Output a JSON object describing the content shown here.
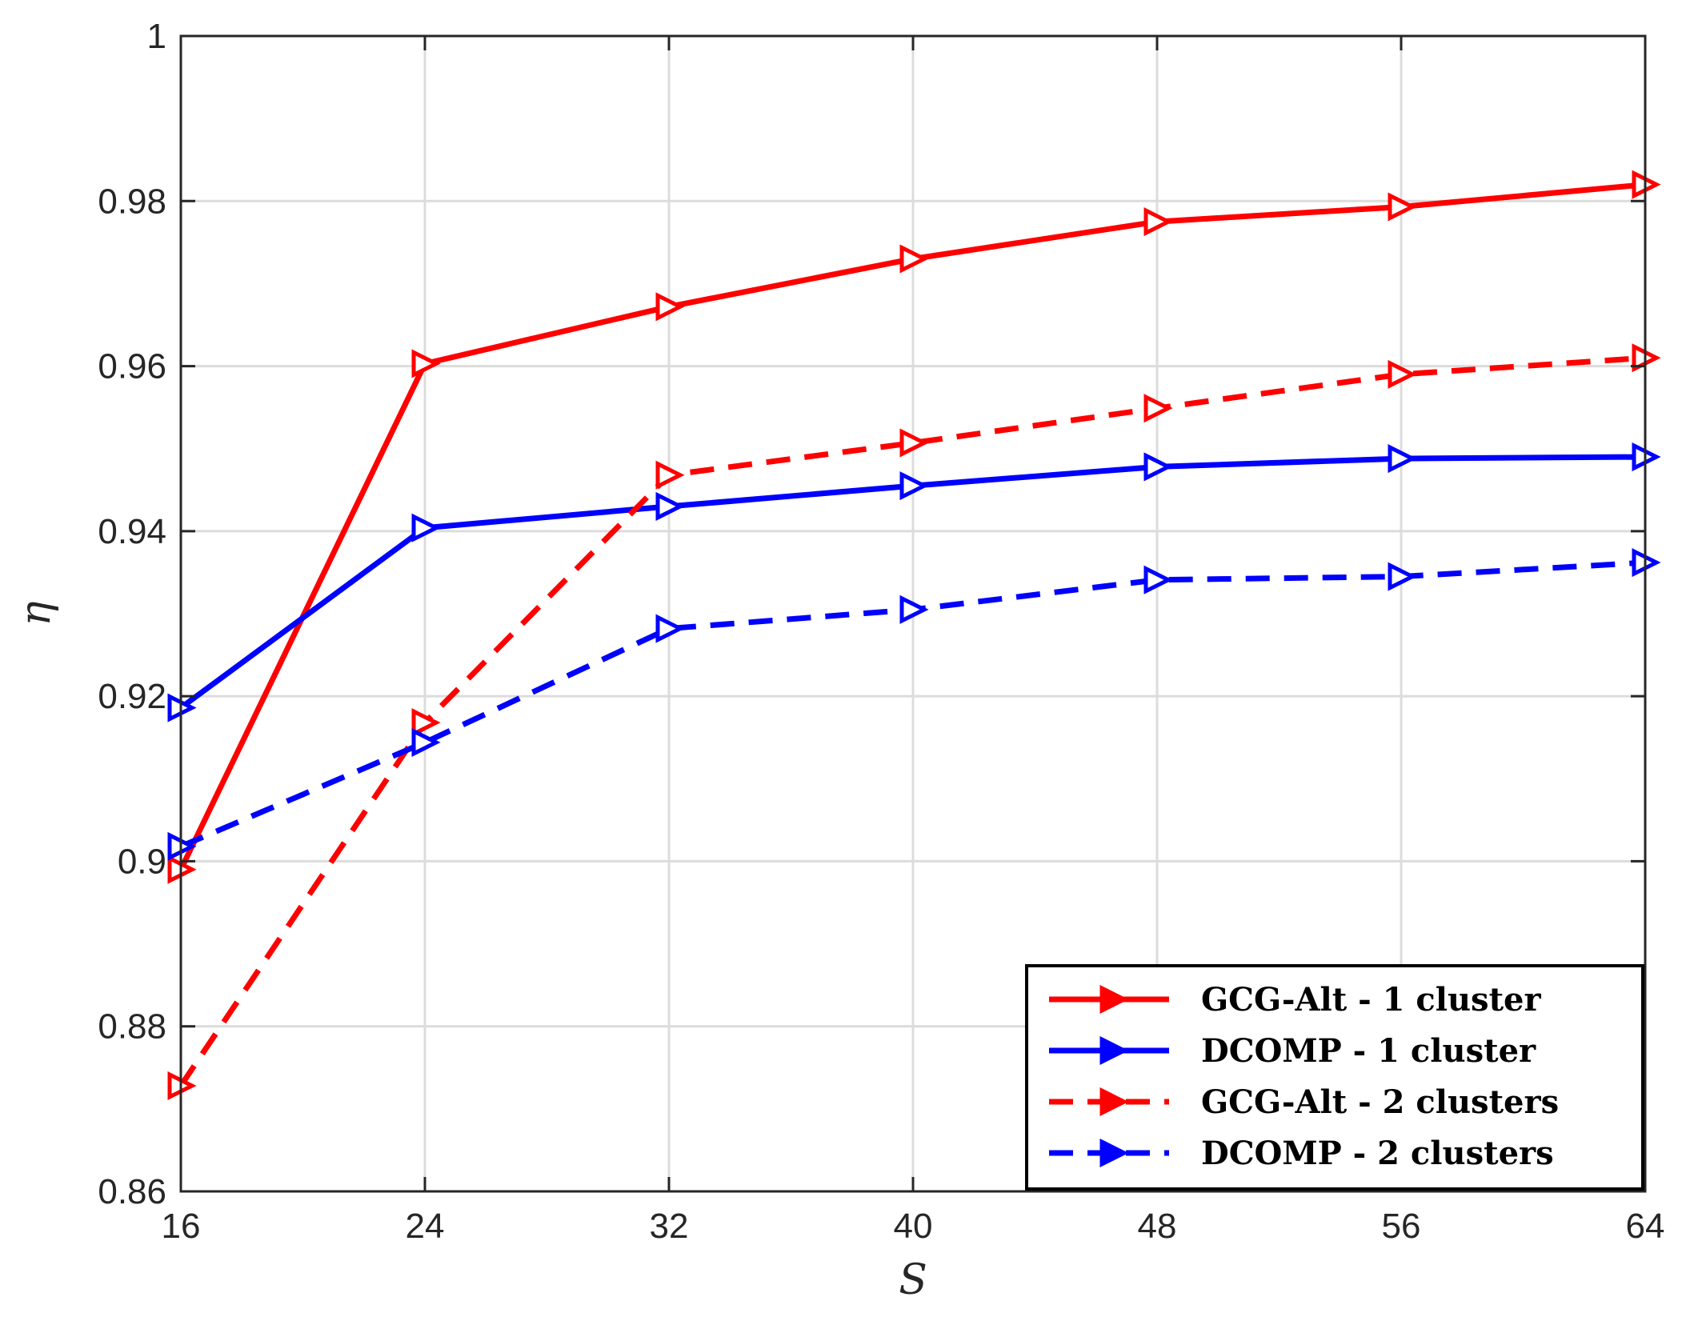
{
  "chart_data": {
    "type": "line",
    "xlabel": "S",
    "ylabel": "η",
    "xlim": [
      16,
      64
    ],
    "ylim": [
      0.86,
      1.0
    ],
    "x_ticks": [
      16,
      24,
      32,
      40,
      48,
      56,
      64
    ],
    "y_ticks": [
      0.86,
      0.88,
      0.9,
      0.92,
      0.94,
      0.96,
      0.98,
      1
    ],
    "y_tick_labels": [
      "0.86",
      "0.88",
      "0.9",
      "0.92",
      "0.94",
      "0.96",
      "0.98",
      "1"
    ],
    "grid": true,
    "legend_position": "bottom-right",
    "x": [
      16,
      24,
      32,
      40,
      48,
      56,
      64
    ],
    "series": [
      {
        "name": "GCG-Alt - 1 cluster",
        "color": "#ff0000",
        "dash": "solid",
        "marker": "triangle-right",
        "values": [
          0.899,
          0.9603,
          0.9672,
          0.973,
          0.9775,
          0.9793,
          0.982
        ]
      },
      {
        "name": "DCOMP - 1 cluster",
        "color": "#0000ff",
        "dash": "solid",
        "marker": "triangle-right",
        "values": [
          0.9186,
          0.9404,
          0.943,
          0.9455,
          0.9478,
          0.9488,
          0.949
        ]
      },
      {
        "name": "GCG-Alt - 2 clusters",
        "color": "#ff0000",
        "dash": "dashed",
        "marker": "triangle-right",
        "values": [
          0.8728,
          0.9168,
          0.9468,
          0.9507,
          0.9549,
          0.959,
          0.961
        ]
      },
      {
        "name": "DCOMP - 2 clusters",
        "color": "#0000ff",
        "dash": "dashed",
        "marker": "triangle-right",
        "values": [
          0.9018,
          0.9144,
          0.9282,
          0.9305,
          0.9341,
          0.9345,
          0.9362
        ]
      }
    ]
  }
}
